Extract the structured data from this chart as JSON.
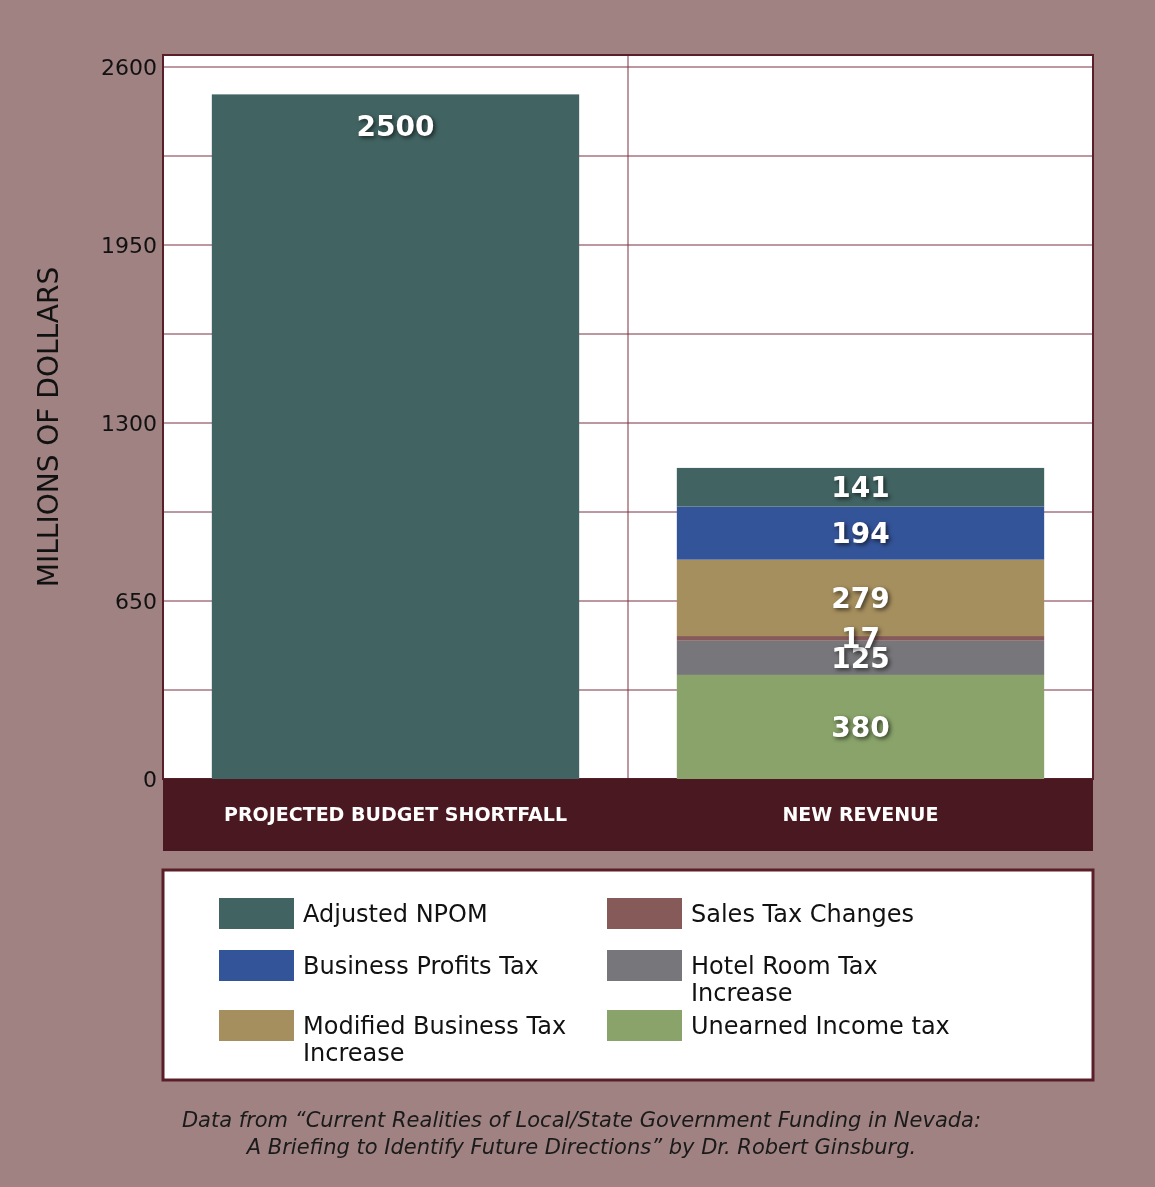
{
  "chart_data": {
    "type": "bar",
    "stacked": true,
    "categories": [
      "PROJECTED BUDGET SHORTFALL",
      "NEW REVENUE"
    ],
    "series": [
      {
        "name": "Unearned Income tax",
        "color": "#89a36a",
        "values": [
          null,
          380
        ]
      },
      {
        "name": "Hotel Room Tax Increase",
        "color": "#77777b",
        "values": [
          null,
          125
        ]
      },
      {
        "name": "Sales Tax Changes",
        "color": "#855a59",
        "values": [
          null,
          17
        ]
      },
      {
        "name": "Modified Business Tax Increase",
        "color": "#a68f5e",
        "values": [
          null,
          279
        ]
      },
      {
        "name": "Business Profits Tax",
        "color": "#34549a",
        "values": [
          null,
          194
        ]
      },
      {
        "name": "Adjusted NPOM",
        "color": "#416462",
        "values": [
          2500,
          141
        ]
      }
    ],
    "ylabel": "MILLIONS OF DOLLARS",
    "ylim": [
      0,
      2600
    ],
    "yticks": [
      0,
      {
        "value": 325,
        "label": null
      },
      650,
      {
        "value": 975,
        "label": null
      },
      1300,
      {
        "value": 1625,
        "label": null
      },
      1950,
      {
        "value": 2275,
        "label": null
      },
      2600
    ],
    "grid": true,
    "data_labels": true,
    "legend": "bottom",
    "annotations": [
      "Data from “Current Realities of Local/State Government Funding in Nevada: A Briefing to Identify Future Directions” by Dr. Robert Ginsburg."
    ]
  }
}
